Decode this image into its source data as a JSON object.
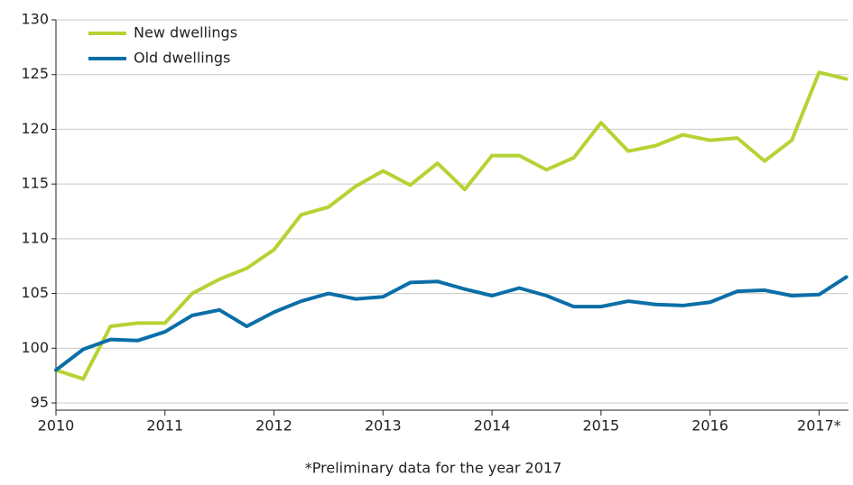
{
  "chart_data": {
    "type": "line",
    "annotation": "*Preliminary data for the year 2017",
    "x": [
      2010,
      2010.25,
      2010.5,
      2010.75,
      2011,
      2011.25,
      2011.5,
      2011.75,
      2012,
      2012.25,
      2012.5,
      2012.75,
      2013,
      2013.25,
      2013.5,
      2013.75,
      2014,
      2014.25,
      2014.5,
      2014.75,
      2015,
      2015.25,
      2015.5,
      2015.75,
      2016,
      2016.25,
      2016.5,
      2016.75,
      2017,
      2017.25
    ],
    "series": [
      {
        "name": "New dwellings",
        "color": "#b5d334",
        "values": [
          98,
          97.2,
          102,
          102.3,
          102.3,
          105,
          106.3,
          107.3,
          109,
          112.2,
          112.9,
          114.8,
          116.2,
          114.9,
          116.9,
          114.5,
          117.6,
          117.6,
          116.3,
          117.4,
          120.6,
          118,
          118.5,
          119.5,
          119,
          119.2,
          117.1,
          119,
          125.2,
          124.6
        ]
      },
      {
        "name": "Old dwellings",
        "color": "#0b6ea8",
        "values": [
          98,
          99.9,
          100.8,
          100.7,
          101.5,
          103,
          103.5,
          102,
          103.3,
          104.3,
          105,
          104.5,
          104.7,
          106,
          106.1,
          105.4,
          104.8,
          105.5,
          104.8,
          103.8,
          103.8,
          104.3,
          104,
          103.9,
          104.2,
          105.2,
          105.3,
          104.8,
          104.9,
          106.5
        ]
      }
    ],
    "xlim": [
      2010,
      2017.27
    ],
    "xticks": [
      2010,
      2011,
      2012,
      2013,
      2014,
      2015,
      2016,
      {
        "value": 2017,
        "label": "2017*"
      }
    ],
    "ylim": [
      95,
      130
    ],
    "yticks": [
      95,
      100,
      105,
      110,
      115,
      120,
      125,
      130
    ],
    "grid": true,
    "legend": "top-left"
  }
}
